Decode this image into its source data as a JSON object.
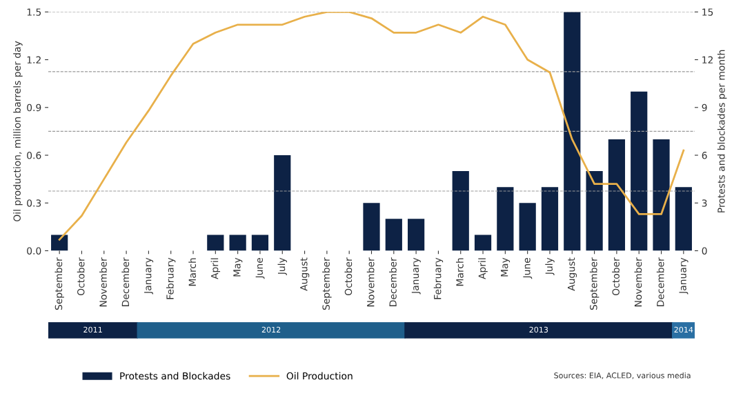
{
  "chart_data": {
    "type": "bar",
    "ylabel": "Oil production, million barrels per day",
    "y2label": "Protests and blockades per month",
    "categories": [
      "September",
      "October",
      "November",
      "December",
      "January",
      "February",
      "March",
      "April",
      "May",
      "June",
      "July",
      "August",
      "September",
      "October",
      "November",
      "December",
      "January",
      "February",
      "March",
      "April",
      "May",
      "June",
      "July",
      "August",
      "September",
      "October",
      "November",
      "December",
      "January"
    ],
    "series": [
      {
        "name": "Protests and Blockades",
        "axis": "y2",
        "color": "#0d2245",
        "values": [
          1,
          0,
          0,
          0,
          0,
          0,
          0,
          1,
          1,
          1,
          6,
          0,
          0,
          0,
          3,
          2,
          2,
          0,
          5,
          1,
          4,
          3,
          4,
          15,
          5,
          7,
          10,
          7,
          4
        ]
      },
      {
        "name": "Oil Production",
        "type": "line",
        "axis": "y",
        "color": "#e8b04a",
        "marker": "none",
        "line_style": "solid",
        "values": [
          0.07,
          0.22,
          0.45,
          0.68,
          0.88,
          1.1,
          1.3,
          1.37,
          1.42,
          1.42,
          1.42,
          1.47,
          1.5,
          1.5,
          1.46,
          1.37,
          1.37,
          1.42,
          1.37,
          1.47,
          1.42,
          1.2,
          1.12,
          0.7,
          0.42,
          0.42,
          0.23,
          0.23,
          0.63
        ]
      }
    ],
    "ylim": [
      0,
      1.5
    ],
    "yticks": [
      {
        "value": 0,
        "label": "0.0"
      },
      0.3,
      0.6,
      0.9,
      1.2,
      1.5
    ],
    "y2lim": [
      0,
      15
    ],
    "y2ticks": [
      0,
      3,
      6,
      9,
      12,
      15
    ],
    "ref_lines": [
      {
        "axis": "y",
        "value": 0.375,
        "color": "#999999",
        "line_style": "dashed"
      },
      {
        "axis": "y",
        "value": 0.75,
        "color": "#999999",
        "line_style": "dashed"
      },
      {
        "axis": "y",
        "value": 1.125,
        "color": "#999999",
        "line_style": "dashed"
      },
      {
        "axis": "y",
        "value": 1.5,
        "color": "#999999",
        "line_style": "dashed"
      }
    ],
    "annotations": [
      "2011",
      "2012",
      "2013",
      "2014",
      "Sources: EIA, ACLED, various media"
    ],
    "grid": false,
    "legend": "bottom left"
  }
}
